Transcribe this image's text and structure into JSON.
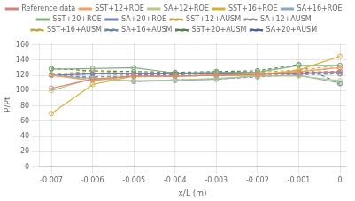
{
  "chart_data": {
    "type": "line",
    "x": [
      -0.007,
      -0.006,
      -0.005,
      -0.004,
      -0.003,
      -0.002,
      -0.001,
      0.0
    ],
    "series": [
      {
        "name": "Reference data",
        "color": "#d4857a",
        "marker": "circle",
        "line_style": "solid",
        "values": [
          103,
          115,
          119,
          119,
          120,
          121,
          123,
          125
        ]
      },
      {
        "name": "SST+12+ROE",
        "color": "#f0a060",
        "marker": "circle",
        "line_style": "solid",
        "values": [
          120,
          113,
          119,
          119,
          120,
          122,
          125,
          130
        ]
      },
      {
        "name": "SA+12+ROE",
        "color": "#b8c890",
        "marker": "circle",
        "line_style": "solid",
        "values": [
          100,
          116,
          113,
          114,
          116,
          119,
          119,
          113
        ]
      },
      {
        "name": "SST+16+ROE",
        "color": "#d4b030",
        "marker": "circle",
        "line_style": "solid",
        "values": [
          70,
          108,
          119,
          119,
          120,
          120,
          127,
          145
        ]
      },
      {
        "name": "SA+16+ROE",
        "color": "#8aa8c8",
        "marker": "circle",
        "line_style": "solid",
        "values": [
          120,
          116,
          112,
          113,
          115,
          119,
          120,
          110
        ]
      },
      {
        "name": "SST+20+ROE",
        "color": "#80b080",
        "marker": "circle",
        "line_style": "solid",
        "values": [
          128,
          129,
          130,
          123,
          124,
          124,
          133,
          133
        ]
      },
      {
        "name": "SA+20+ROE",
        "color": "#7080b8",
        "marker": "triangle",
        "line_style": "solid",
        "values": [
          120,
          122,
          122,
          122,
          122,
          122,
          122,
          124
        ]
      },
      {
        "name": "SST+12+AUSM",
        "color": "#c8a050",
        "marker": "circle",
        "line_style": "dashed",
        "values": [
          121,
          114,
          118,
          119,
          120,
          122,
          125,
          130
        ]
      },
      {
        "name": "SA+12+AUSM",
        "color": "#909090",
        "marker": "diamond",
        "line_style": "dashed",
        "values": [
          120,
          118,
          119,
          119,
          120,
          121,
          121,
          122
        ]
      },
      {
        "name": "SST+16+AUSM",
        "color": "#c8a840",
        "marker": "circle",
        "line_style": "dashed",
        "values": [
          121,
          126,
          122,
          122,
          124,
          124,
          127,
          133
        ]
      },
      {
        "name": "SA+16+AUSM",
        "color": "#6888a8",
        "marker": "circle",
        "line_style": "dashed",
        "values": [
          120,
          117,
          112,
          114,
          115,
          118,
          121,
          122
        ]
      },
      {
        "name": "SST+20+AUSM",
        "color": "#588058",
        "marker": "circle",
        "line_style": "dashed",
        "values": [
          129,
          126,
          125,
          124,
          125,
          126,
          134,
          109
        ]
      },
      {
        "name": "SA+20+AUSM",
        "color": "#5060a0",
        "marker": "circle",
        "line_style": "dashed",
        "values": [
          120,
          122,
          121,
          121,
          122,
          122,
          124,
          125
        ]
      }
    ],
    "xlabel": "x/L (m)",
    "ylabel": "P/Pt",
    "xlim": [
      -0.0073,
      0.00015
    ],
    "ylim": [
      0,
      163
    ],
    "xticks": [
      -0.007,
      -0.006,
      -0.005,
      -0.004,
      -0.003,
      -0.002,
      -0.001,
      0
    ],
    "yticks": [
      0,
      20,
      40,
      60,
      80,
      100,
      120,
      140,
      160
    ],
    "grid": true,
    "legend": "top"
  }
}
